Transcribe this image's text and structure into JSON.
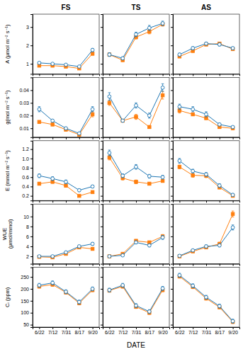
{
  "chart_data": [
    {
      "type": "line",
      "title": "FS",
      "ylabel": "A (μmol m⁻² s⁻¹)",
      "categories": [
        "6/22",
        "7/12",
        "7/31",
        "8/17",
        "9/20"
      ],
      "series": [
        {
          "values": [
            1.05,
            1.0,
            0.95,
            0.85,
            1.75
          ],
          "errors": [
            0.06,
            0.05,
            0.05,
            0.05,
            0.09
          ],
          "marker": "open-circle"
        },
        {
          "values": [
            0.9,
            0.9,
            0.85,
            0.75,
            1.55
          ],
          "errors": [
            0.05,
            0.04,
            0.04,
            0.04,
            0.08
          ],
          "marker": "square"
        }
      ],
      "ylim": [
        0.45,
        3.7
      ],
      "yticks": [
        1,
        2,
        3
      ],
      "tick_labels": "y"
    },
    {
      "type": "line",
      "title": "TS",
      "categories": [
        "6/22",
        "7/12",
        "7/31",
        "8/17",
        "9/20"
      ],
      "series": [
        {
          "values": [
            1.5,
            1.3,
            2.6,
            2.95,
            3.2
          ],
          "errors": [
            0.1,
            0.08,
            0.12,
            0.14,
            0.12
          ],
          "marker": "open-circle"
        },
        {
          "values": [
            1.5,
            1.2,
            2.45,
            2.75,
            3.15
          ],
          "errors": [
            0.09,
            0.07,
            0.1,
            0.12,
            0.1
          ],
          "marker": "square"
        }
      ],
      "ylim": [
        0.45,
        3.7
      ],
      "yticks": [
        1,
        2,
        3
      ],
      "tick_labels": false
    },
    {
      "type": "line",
      "title": "AS",
      "categories": [
        "6/22",
        "7/12",
        "7/31",
        "8/17",
        "9/20"
      ],
      "series": [
        {
          "values": [
            1.5,
            1.85,
            2.1,
            2.05,
            1.85
          ],
          "errors": [
            0.08,
            0.08,
            0.08,
            0.08,
            0.07
          ],
          "marker": "open-circle"
        },
        {
          "values": [
            1.4,
            1.7,
            2.05,
            2.1,
            1.8
          ],
          "errors": [
            0.07,
            0.07,
            0.07,
            0.07,
            0.06
          ],
          "marker": "square"
        }
      ],
      "ylim": [
        0.45,
        3.7
      ],
      "yticks": [
        1,
        2,
        3
      ],
      "tick_labels": false
    },
    {
      "type": "line",
      "ylabel": "g(mol m⁻² s⁻¹)",
      "categories": [
        "6/22",
        "7/12",
        "7/31",
        "8/17",
        "9/20"
      ],
      "series": [
        {
          "values": [
            0.025,
            0.016,
            0.01,
            0.006,
            0.025
          ],
          "errors": [
            0.002,
            0.001,
            0.001,
            0.001,
            0.002
          ],
          "marker": "open-circle"
        },
        {
          "values": [
            0.015,
            0.013,
            0.009,
            0.005,
            0.021
          ],
          "errors": [
            0.001,
            0.001,
            0.001,
            0.001,
            0.002
          ],
          "marker": "square"
        }
      ],
      "ylim": [
        0.003,
        0.05
      ],
      "yticks": [
        0.01,
        0.02,
        0.03,
        0.04
      ],
      "tick_labels": "y"
    },
    {
      "type": "line",
      "categories": [
        "6/22",
        "7/12",
        "7/31",
        "8/17",
        "9/20"
      ],
      "series": [
        {
          "values": [
            0.035,
            0.016,
            0.028,
            0.02,
            0.042
          ],
          "errors": [
            0.003,
            0.001,
            0.002,
            0.002,
            0.003
          ],
          "marker": "open-circle"
        },
        {
          "values": [
            0.03,
            0.016,
            0.019,
            0.011,
            0.036
          ],
          "errors": [
            0.002,
            0.001,
            0.002,
            0.001,
            0.003
          ],
          "marker": "square"
        }
      ],
      "ylim": [
        0.003,
        0.05
      ],
      "yticks": [
        0.01,
        0.02,
        0.03,
        0.04
      ],
      "tick_labels": false
    },
    {
      "type": "line",
      "categories": [
        "6/22",
        "7/12",
        "7/31",
        "8/17",
        "9/20"
      ],
      "series": [
        {
          "values": [
            0.027,
            0.025,
            0.021,
            0.013,
            0.011
          ],
          "errors": [
            0.002,
            0.002,
            0.002,
            0.001,
            0.001
          ],
          "marker": "open-circle"
        },
        {
          "values": [
            0.024,
            0.021,
            0.018,
            0.011,
            0.01
          ],
          "errors": [
            0.002,
            0.001,
            0.001,
            0.001,
            0.001
          ],
          "marker": "square"
        }
      ],
      "ylim": [
        0.003,
        0.05
      ],
      "yticks": [
        0.01,
        0.02,
        0.03,
        0.04
      ],
      "tick_labels": false
    },
    {
      "type": "line",
      "ylabel": "E (mmol m⁻² s⁻¹)",
      "categories": [
        "6/22",
        "7/12",
        "7/31",
        "8/17",
        "9/20"
      ],
      "series": [
        {
          "values": [
            0.63,
            0.57,
            0.5,
            0.32,
            0.4
          ],
          "errors": [
            0.04,
            0.04,
            0.04,
            0.03,
            0.03
          ],
          "marker": "open-circle"
        },
        {
          "values": [
            0.46,
            0.5,
            0.42,
            0.2,
            0.28
          ],
          "errors": [
            0.03,
            0.03,
            0.03,
            0.02,
            0.02
          ],
          "marker": "square"
        }
      ],
      "ylim": [
        0.1,
        1.38
      ],
      "yticks": [
        0.2,
        0.4,
        0.6,
        0.8,
        {
          "value": 1.0,
          "label": "1.0"
        },
        1.2
      ],
      "tick_labels": "y"
    },
    {
      "type": "line",
      "categories": [
        "6/22",
        "7/12",
        "7/31",
        "8/17",
        "9/20"
      ],
      "series": [
        {
          "values": [
            1.12,
            0.63,
            0.82,
            0.62,
            0.6
          ],
          "errors": [
            0.06,
            0.04,
            0.05,
            0.04,
            0.04
          ],
          "marker": "open-circle"
        },
        {
          "values": [
            1.02,
            0.58,
            0.5,
            0.46,
            0.52
          ],
          "errors": [
            0.05,
            0.04,
            0.04,
            0.03,
            0.03
          ],
          "marker": "square"
        }
      ],
      "ylim": [
        0.1,
        1.38
      ],
      "yticks": [
        0.2,
        0.4,
        0.6,
        0.8,
        {
          "value": 1.0,
          "label": "1.0"
        },
        1.2
      ],
      "tick_labels": false
    },
    {
      "type": "line",
      "categories": [
        "6/22",
        "7/12",
        "7/31",
        "8/17",
        "9/20"
      ],
      "series": [
        {
          "values": [
            0.95,
            0.73,
            0.66,
            0.42,
            0.22
          ],
          "errors": [
            0.05,
            0.04,
            0.04,
            0.04,
            0.03
          ],
          "marker": "open-circle"
        },
        {
          "values": [
            0.82,
            0.64,
            0.63,
            0.38,
            0.2
          ],
          "errors": [
            0.04,
            0.04,
            0.04,
            0.03,
            0.02
          ],
          "marker": "square"
        }
      ],
      "ylim": [
        0.1,
        1.38
      ],
      "yticks": [
        0.2,
        0.4,
        0.6,
        0.8,
        {
          "value": 1.0,
          "label": "1.0"
        },
        1.2
      ],
      "tick_labels": false
    },
    {
      "type": "line",
      "ylabel": "WUE\n(μmol/mmol)",
      "categories": [
        "6/22",
        "7/12",
        "7/31",
        "8/17",
        "9/20"
      ],
      "series": [
        {
          "values": [
            2.0,
            2.0,
            2.8,
            4.0,
            4.5
          ],
          "errors": [
            0.15,
            0.15,
            0.2,
            0.25,
            0.3
          ],
          "marker": "open-circle"
        },
        {
          "values": [
            1.9,
            1.8,
            2.5,
            3.8,
            3.5
          ],
          "errors": [
            0.12,
            0.12,
            0.18,
            0.22,
            0.25
          ],
          "marker": "square"
        }
      ],
      "ylim": [
        0.5,
        12.5
      ],
      "yticks": [
        2,
        4,
        6,
        8,
        10
      ],
      "tick_labels": "y"
    },
    {
      "type": "line",
      "categories": [
        "6/22",
        "7/12",
        "7/31",
        "8/17",
        "9/20"
      ],
      "series": [
        {
          "values": [
            2.0,
            2.2,
            4.8,
            4.2,
            5.8
          ],
          "errors": [
            0.15,
            0.2,
            0.3,
            0.3,
            0.4
          ],
          "marker": "open-circle"
        },
        {
          "values": [
            2.0,
            2.5,
            5.1,
            4.8,
            6.0
          ],
          "errors": [
            0.12,
            0.18,
            0.28,
            0.28,
            0.38
          ],
          "marker": "square"
        }
      ],
      "ylim": [
        0.5,
        12.5
      ],
      "yticks": [
        2,
        4,
        6,
        8,
        10
      ],
      "tick_labels": false
    },
    {
      "type": "line",
      "categories": [
        "6/22",
        "7/12",
        "7/31",
        "8/17",
        "9/20"
      ],
      "series": [
        {
          "values": [
            2.1,
            3.2,
            4.0,
            4.2,
            7.8
          ],
          "errors": [
            0.15,
            0.2,
            0.3,
            0.3,
            0.5
          ],
          "marker": "open-circle"
        },
        {
          "values": [
            2.0,
            3.0,
            3.8,
            4.5,
            10.5
          ],
          "errors": [
            0.12,
            0.18,
            0.28,
            0.32,
            0.6
          ],
          "marker": "square"
        }
      ],
      "ylim": [
        0.5,
        12.5
      ],
      "yticks": [
        2,
        4,
        6,
        8,
        10
      ],
      "tick_labels": false
    },
    {
      "type": "line",
      "ylabel": "Cᵢ (ppm)",
      "categories": [
        "6/22",
        "7/12",
        "7/31",
        "8/17",
        "9/20"
      ],
      "series": [
        {
          "values": [
            215,
            225,
            188,
            145,
            200
          ],
          "errors": [
            8,
            8,
            8,
            8,
            8
          ],
          "marker": "open-circle"
        },
        {
          "values": [
            210,
            218,
            185,
            140,
            195
          ],
          "errors": [
            7,
            7,
            7,
            7,
            7
          ],
          "marker": "square"
        }
      ],
      "ylim": [
        40,
        290
      ],
      "yticks": [
        50,
        100,
        150,
        200,
        250
      ]
    },
    {
      "type": "line",
      "xlabel": "DATE",
      "categories": [
        "6/22",
        "7/12",
        "7/31",
        "8/17",
        "9/20"
      ],
      "series": [
        {
          "values": [
            195,
            215,
            130,
            105,
            202
          ],
          "errors": [
            8,
            8,
            8,
            8,
            8
          ],
          "marker": "open-circle"
        },
        {
          "values": [
            193,
            210,
            125,
            100,
            195
          ],
          "errors": [
            7,
            7,
            7,
            7,
            7
          ],
          "marker": "square"
        }
      ],
      "ylim": [
        40,
        290
      ],
      "yticks": [
        50,
        100,
        150,
        200,
        250
      ],
      "tick_labels": "x"
    },
    {
      "type": "line",
      "categories": [
        "6/22",
        "7/12",
        "7/31",
        "8/17",
        "9/20"
      ],
      "series": [
        {
          "values": [
            257,
            213,
            165,
            128,
            65
          ],
          "errors": [
            8,
            8,
            8,
            8,
            8
          ],
          "marker": "open-circle"
        },
        {
          "values": [
            252,
            208,
            160,
            123,
            62
          ],
          "errors": [
            7,
            7,
            7,
            7,
            7
          ],
          "marker": "square"
        }
      ],
      "ylim": [
        40,
        290
      ],
      "yticks": [
        50,
        100,
        150,
        200,
        250
      ],
      "tick_labels": "x"
    }
  ]
}
